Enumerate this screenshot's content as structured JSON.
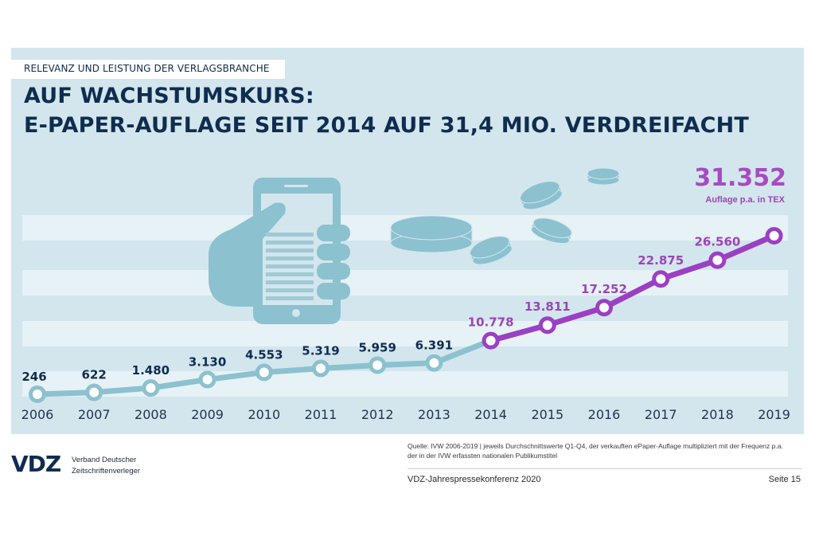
{
  "header": {
    "kicker": "RELEVANZ UND LEISTUNG DER VERLAGSBRANCHE",
    "title_line1": "AUF WACHSTUMSKURS:",
    "title_line2": "E-PAPER-AUFLAGE SEIT 2014 AUF 31,4 MIO. VERDREIFACHT"
  },
  "highlight": {
    "value": "31.352",
    "unit": "Auflage p.a. in TEX"
  },
  "colors": {
    "panel": "#d3e6ed",
    "stripe": "#e6f2f5",
    "teal": "#8cc1cf",
    "purple": "#9b3fc4",
    "navy": "#0f2d50"
  },
  "icons": [
    "hand-holding-phone-icon",
    "coins-icon"
  ],
  "chart_data": {
    "type": "line",
    "title": "E-Paper-Auflage p.a. in TEX",
    "xlabel": "",
    "ylabel": "Auflage p.a. in TEX",
    "x": [
      "2006",
      "2007",
      "2008",
      "2009",
      "2010",
      "2011",
      "2012",
      "2013",
      "2014",
      "2015",
      "2016",
      "2017",
      "2018",
      "2019"
    ],
    "values": [
      246,
      622,
      1480,
      3130,
      4553,
      5319,
      5959,
      6391,
      10778,
      13811,
      17252,
      22875,
      26560,
      31352
    ],
    "labels": [
      "246",
      "622",
      "1.480",
      "3.130",
      "4.553",
      "5.319",
      "5.959",
      "6.391",
      "10.778",
      "13.811",
      "17.252",
      "22.875",
      "26.560",
      "31.352"
    ],
    "series": [
      {
        "name": "2006-2014",
        "range": [
          "2006",
          "2014"
        ],
        "color": "#8cc1cf"
      },
      {
        "name": "2014-2019",
        "range": [
          "2014",
          "2019"
        ],
        "color": "#9b3fc4"
      }
    ],
    "ylim": [
      0,
      35000
    ],
    "grid": "horizontal bands",
    "legend": "none"
  },
  "footer": {
    "logo": "VDZ",
    "org_line1": "Verband Deutscher",
    "org_line2": "Zeitschriftenverleger",
    "source_line1": "Quelle: IVW 2006-2019 | jeweils Durchschnittswerte Q1-Q4, der verkauften ePaper-Auflage multipliziert mit der Frequenz p.a.",
    "source_line2": "der in der IVW erfassten nationalen Publikumstitel",
    "event": "VDZ-Jahrespressekonferenz 2020",
    "page": "Seite 15"
  }
}
